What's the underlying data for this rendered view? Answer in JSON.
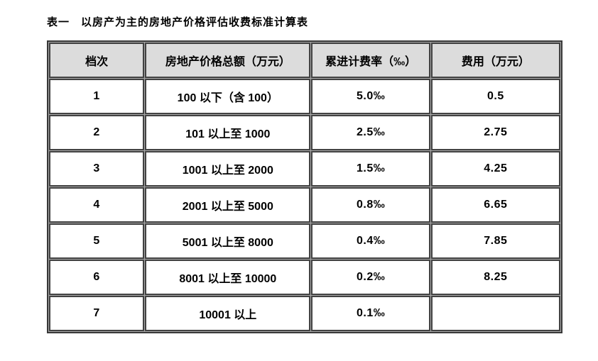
{
  "title": "表一　以房产为主的房地产价格评估收费标准计算表",
  "table": {
    "header_bg": "#dcdcdc",
    "border_color": "#424242",
    "columns": [
      "档次",
      "房地产价格总额（万元）",
      "累进计费率（‰）",
      "费用（万元）"
    ],
    "rows": [
      {
        "tier": "1",
        "range": "100 以下（含 100）",
        "rate": "5.0‰",
        "fee": "0.5"
      },
      {
        "tier": "2",
        "range": "101 以上至 1000",
        "rate": "2.5‰",
        "fee": "2.75"
      },
      {
        "tier": "3",
        "range": "1001 以上至 2000",
        "rate": "1.5‰",
        "fee": "4.25"
      },
      {
        "tier": "4",
        "range": "2001 以上至 5000",
        "rate": "0.8‰",
        "fee": "6.65"
      },
      {
        "tier": "5",
        "range": "5001 以上至 8000",
        "rate": "0.4‰",
        "fee": "7.85"
      },
      {
        "tier": "6",
        "range": "8001 以上至 10000",
        "rate": "0.2‰",
        "fee": "8.25"
      },
      {
        "tier": "7",
        "range": "10001 以上",
        "rate": "0.1‰",
        "fee": ""
      }
    ]
  }
}
